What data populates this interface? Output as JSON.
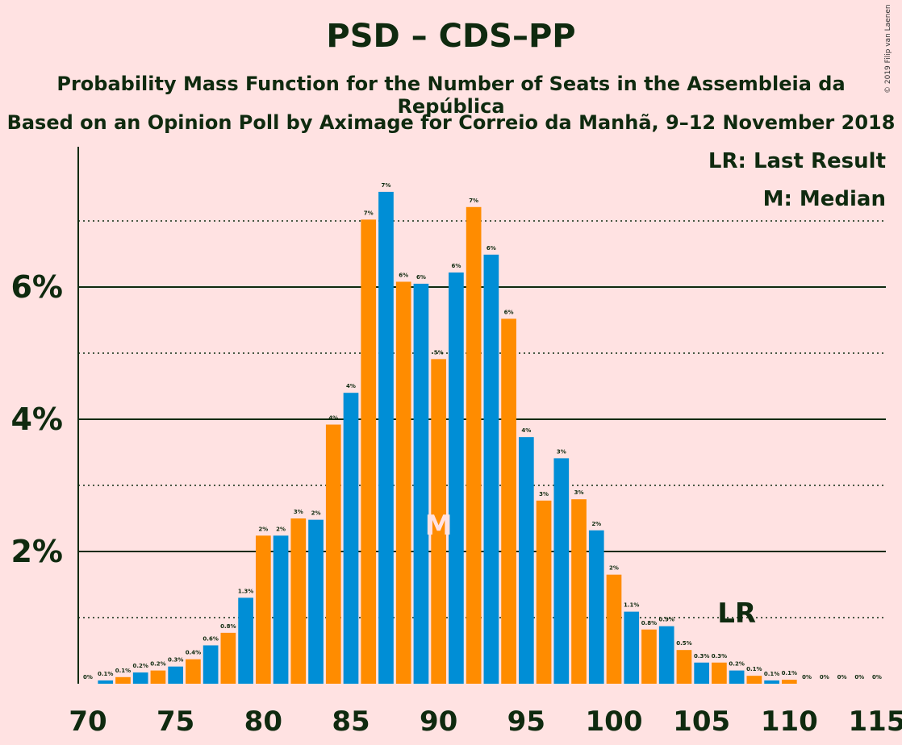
{
  "title": "PSD – CDS–PP",
  "subtitle1": "Probability Mass Function for the Number of Seats in the Assembleia da República",
  "subtitle2": "Based on an Opinion Poll by Aximage for Correio da Manhã, 9–12 November 2018",
  "copyright": "© 2019 Filip van Laenen",
  "legend": {
    "lr": "LR: Last Result",
    "m": "M: Median"
  },
  "colors": {
    "blue": "#008ed6",
    "orange": "#ff8c00",
    "background": "#ffe2e2",
    "text": "#0f2a0f",
    "median_marker": "#ffe2e2"
  },
  "chart_data": {
    "type": "bar",
    "x": [
      70,
      71,
      72,
      73,
      74,
      75,
      76,
      77,
      78,
      79,
      80,
      81,
      82,
      83,
      84,
      85,
      86,
      87,
      88,
      89,
      90,
      91,
      92,
      93,
      94,
      95,
      96,
      97,
      98,
      99,
      100,
      101,
      102,
      103,
      104,
      105,
      106,
      107,
      108,
      109,
      110,
      111,
      112,
      113,
      114,
      115
    ],
    "values": [
      0,
      0.05,
      0.1,
      0.17,
      0.2,
      0.26,
      0.37,
      0.58,
      0.77,
      1.3,
      2.24,
      2.24,
      2.5,
      2.48,
      3.92,
      4.4,
      7.02,
      7.44,
      6.08,
      6.05,
      4.91,
      6.22,
      7.21,
      6.49,
      5.52,
      3.73,
      2.77,
      3.41,
      2.79,
      2.32,
      1.65,
      1.09,
      0.82,
      0.87,
      0.51,
      0.32,
      0.32,
      0.2,
      0.12,
      0.05,
      0.06,
      0,
      0,
      0,
      0,
      0
    ],
    "labels": [
      "0%",
      "0.1%",
      "0.1%",
      "0.2%",
      "0.2%",
      "0.3%",
      "0.4%",
      "0.6%",
      "0.8%",
      "1.3%",
      "2%",
      "2%",
      "3%",
      "2%",
      "4%",
      "4%",
      "7%",
      "7%",
      "6%",
      "6%",
      "5%",
      "6%",
      "7%",
      "6%",
      "6%",
      "4%",
      "3%",
      "3%",
      "3%",
      "2%",
      "2%",
      "1.1%",
      "0.8%",
      "0.9%",
      "0.5%",
      "0.3%",
      "0.3%",
      "0.2%",
      "0.1%",
      "0.1%",
      "0.1%",
      "0%",
      "0%",
      "0%",
      "0%",
      "0%"
    ],
    "xticks": [
      "70",
      "75",
      "80",
      "85",
      "90",
      "95",
      "100",
      "105",
      "110",
      "115"
    ],
    "yticks": [
      "2%",
      "4%",
      "6%"
    ],
    "ylim": [
      0,
      7.8
    ],
    "median": 90,
    "median_label": "M",
    "last_result": 107,
    "last_result_label": "LR"
  }
}
